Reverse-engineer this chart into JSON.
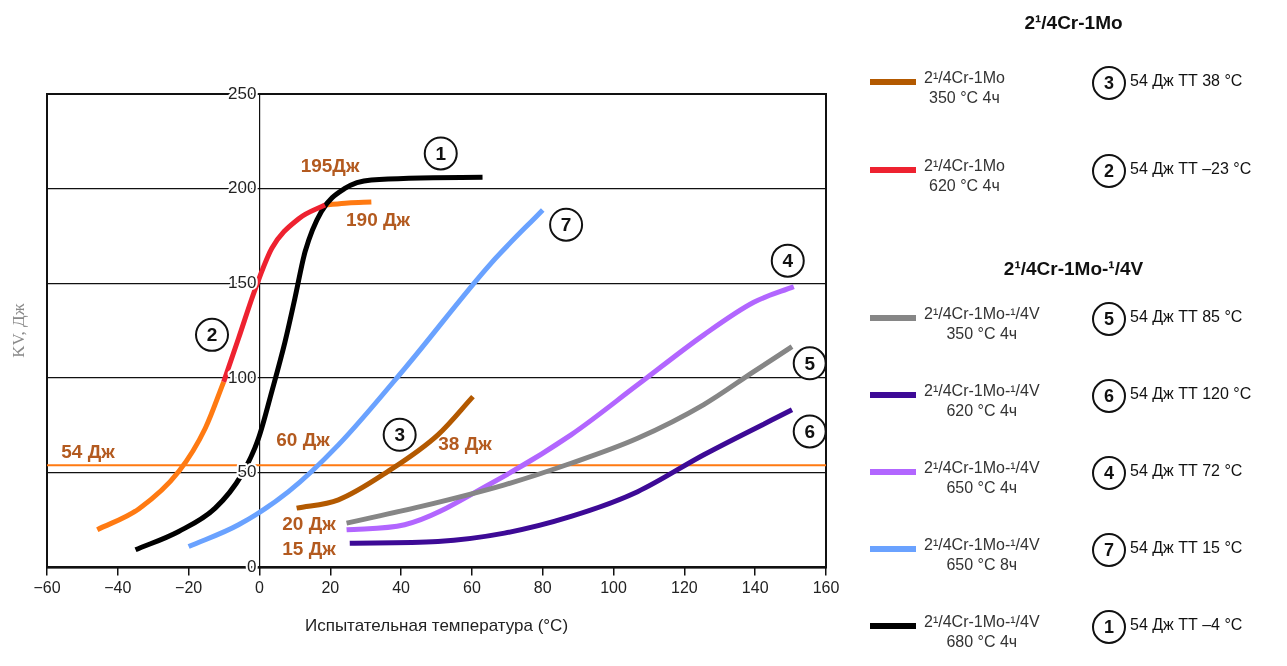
{
  "chart_data": {
    "type": "line",
    "xlabel": "Испытательная температура (°C)",
    "ylabel": "KV, Дж",
    "xlim": [
      -60,
      160
    ],
    "ylim": [
      0,
      250
    ],
    "xticks": [
      -60,
      -40,
      -20,
      0,
      20,
      40,
      60,
      80,
      100,
      120,
      140,
      160
    ],
    "yticks": [
      0,
      50,
      100,
      150,
      200,
      250
    ],
    "grid": "y",
    "legend": "right",
    "marker": "none",
    "line_style": "solid",
    "series": [
      {
        "name": "2¹/4Cr-1Mo\n350 °C 4ч",
        "color": "#b35900",
        "x": [
          10.5,
          22.3,
          36.3,
          50.4,
          60.3
        ],
        "values": [
          31.3,
          35.7,
          50.7,
          70,
          90.2
        ]
      },
      {
        "name": "2¹/4Cr-1Mo\n620 °C 4ч",
        "color": "#ee2230",
        "x": [
          -10.1,
          -5.9,
          -1.2,
          3.5,
          11,
          18.5
        ],
        "values": [
          98,
          121,
          147,
          168.5,
          184,
          191.4
        ]
      },
      {
        "name": "2¹/4Cr-1Mo-¹/4V\n350 °C 4ч",
        "color": "#868686",
        "x": [
          24.6,
          45.7,
          69.2,
          88,
          106.8,
          125.5,
          139.6,
          150.4
        ],
        "values": [
          23.4,
          32.2,
          43.6,
          55,
          68.2,
          86,
          103.4,
          116.6
        ]
      },
      {
        "name": "2¹/4Cr-1Mo-¹/4V\n620 °C 4ч",
        "color": "#3d0a96",
        "x": [
          25.5,
          50.4,
          69.2,
          88,
          106.8,
          125.5,
          150.4
        ],
        "values": [
          12.8,
          13.7,
          18.1,
          26.9,
          40,
          59.5,
          83.2
        ]
      },
      {
        "name": "2¹/4Cr-1Mo-¹/4V\n650 °C 4ч",
        "color": "#b266ff",
        "x": [
          24.6,
          41,
          66.4,
          88,
          106.8,
          125.5,
          139.6,
          150.9
        ],
        "values": [
          19.9,
          22.5,
          45.4,
          70,
          96.4,
          122.8,
          140,
          148.3
        ]
      },
      {
        "name": "2¹/4Cr-1Mo-¹/4V\n650 °C 8ч",
        "color": "#6aa2ff",
        "x": [
          -20,
          -5.9,
          8.2,
          22.3,
          41,
          65.4,
          80
        ],
        "values": [
          11,
          22.5,
          40,
          64.7,
          105,
          160.6,
          188.8
        ]
      },
      {
        "name": "2¹/4Cr-1Mo-¹/4V\n680 °C 4ч",
        "color": "#000000",
        "x": [
          -35,
          -22.8,
          -12.5,
          -5,
          -0.3,
          3.5,
          7.2,
          10,
          12.9,
          17.5,
          24,
          31.6,
          63
        ],
        "values": [
          9.3,
          19,
          31.3,
          49,
          68,
          93,
          119,
          142,
          166.8,
          188,
          200,
          204.6,
          206
        ]
      },
      {
        "color": "#ff7a12",
        "x": [
          -45.8,
          -34,
          -22.8,
          -15.3,
          -10.1
        ],
        "values": [
          19.9,
          31,
          50.6,
          73.5,
          98
        ]
      },
      {
        "color": "#ff7a12",
        "x": [
          18.5,
          25,
          31.6
        ],
        "values": [
          191.4,
          192.5,
          193
        ]
      }
    ],
    "ref_lines": [
      {
        "axis": "y",
        "value": 54,
        "color": "#ff7a12"
      }
    ],
    "annotations": [
      "195Дж",
      "190 Дж",
      "60 Дж",
      "38 Дж",
      "20 Дж",
      "15 Дж",
      "54 Дж",
      {
        "text": "1",
        "x": 51.2,
        "y": 218.6
      },
      {
        "text": "2",
        "x": -13.4,
        "y": 122.8
      },
      {
        "text": "3",
        "x": 39.6,
        "y": 70
      },
      {
        "text": "7",
        "x": 86.6,
        "y": 181
      },
      {
        "text": "4",
        "x": 149.2,
        "y": 162
      },
      {
        "text": "5",
        "x": 155.4,
        "y": 107.8
      },
      {
        "text": "6",
        "x": 155.4,
        "y": 71.8
      },
      "2¹/4Cr-1Mo",
      "3",
      "54 Дж ТТ 38 °C",
      "2",
      "54 Дж ТТ –23 °C",
      "2¹/4Cr-1Mo-¹/4V",
      "5",
      "54 Дж ТТ 85 °C",
      "6",
      "54 Дж ТТ 120 °C",
      "4",
      "54 Дж ТТ 72 °C",
      "7",
      "54 Дж ТТ 15 °C",
      "1",
      "54 Дж ТТ –4 °C"
    ]
  }
}
